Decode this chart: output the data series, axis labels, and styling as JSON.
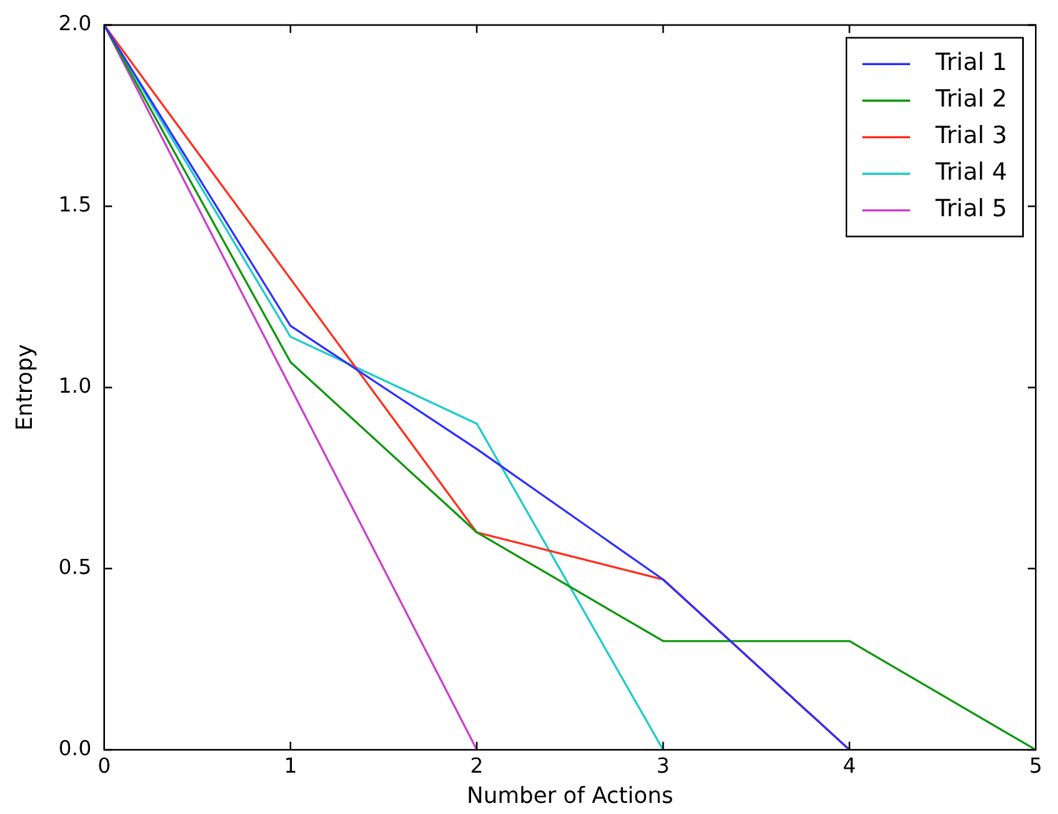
{
  "chart_data": {
    "type": "line",
    "xlabel": "Number of Actions",
    "ylabel": "Entropy",
    "xlim": [
      0,
      5
    ],
    "xticks": [
      0,
      1,
      2,
      3,
      4,
      5
    ],
    "ylim": [
      0,
      2
    ],
    "yticks": [
      {
        "value": 0,
        "label": "0.0"
      },
      {
        "value": 0.5,
        "label": "0.5"
      },
      {
        "value": 1,
        "label": "1.0"
      },
      {
        "value": 1.5,
        "label": "1.5"
      },
      {
        "value": 2,
        "label": "2.0"
      }
    ],
    "grid": false,
    "legend": "top right",
    "marker": "none",
    "line_style": "solid",
    "series": [
      {
        "name": "Trial 1",
        "color": "#3333ff",
        "x": [
          0,
          1,
          2,
          3,
          4
        ],
        "values": [
          2,
          1.17,
          0.83,
          0.47,
          0
        ]
      },
      {
        "name": "Trial 2",
        "color": "#119911",
        "x": [
          0,
          1,
          2,
          3,
          4,
          5
        ],
        "values": [
          2,
          1.07,
          0.6,
          0.3,
          0.3,
          0
        ]
      },
      {
        "name": "Trial 3",
        "color": "#ff3322",
        "x": [
          0,
          1,
          2,
          3,
          4
        ],
        "values": [
          2,
          1.3,
          0.6,
          0.47,
          0
        ]
      },
      {
        "name": "Trial 4",
        "color": "#22cccc",
        "x": [
          0,
          1,
          2,
          3
        ],
        "values": [
          2,
          1.14,
          0.9,
          0
        ]
      },
      {
        "name": "Trial 5",
        "color": "#cc44cc",
        "x": [
          0,
          1,
          2
        ],
        "values": [
          2,
          1,
          0
        ]
      }
    ]
  }
}
